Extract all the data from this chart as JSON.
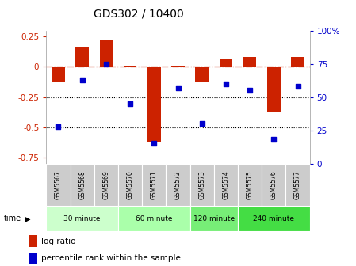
{
  "title": "GDS302 / 10400",
  "samples": [
    "GSM5567",
    "GSM5568",
    "GSM5569",
    "GSM5570",
    "GSM5571",
    "GSM5572",
    "GSM5573",
    "GSM5574",
    "GSM5575",
    "GSM5576",
    "GSM5577"
  ],
  "log_ratio": [
    -0.12,
    0.16,
    0.22,
    0.01,
    -0.62,
    0.01,
    -0.13,
    0.06,
    0.08,
    -0.38,
    0.08
  ],
  "percentile": [
    28,
    63,
    75,
    45,
    15,
    57,
    30,
    60,
    55,
    18,
    58
  ],
  "groups": [
    {
      "label": "30 minute",
      "start": 0,
      "end": 3,
      "color": "#ccffcc"
    },
    {
      "label": "60 minute",
      "start": 3,
      "end": 6,
      "color": "#aaffaa"
    },
    {
      "label": "120 minute",
      "start": 6,
      "end": 8,
      "color": "#77ee77"
    },
    {
      "label": "240 minute",
      "start": 8,
      "end": 11,
      "color": "#44dd44"
    }
  ],
  "bar_color": "#cc2200",
  "dot_color": "#0000cc",
  "ylim_left": [
    -0.8,
    0.3
  ],
  "ylim_right": [
    0,
    100
  ],
  "yticks_left": [
    0.25,
    0.0,
    -0.25,
    -0.5,
    -0.75
  ],
  "yticks_right": [
    100,
    75,
    50,
    25,
    0
  ],
  "hline_dots": [
    -0.25,
    -0.5
  ],
  "bar_width": 0.55,
  "background_color": "#ffffff",
  "group_bg_color": "#cccccc",
  "figsize": [
    4.49,
    3.36
  ],
  "dpi": 100
}
